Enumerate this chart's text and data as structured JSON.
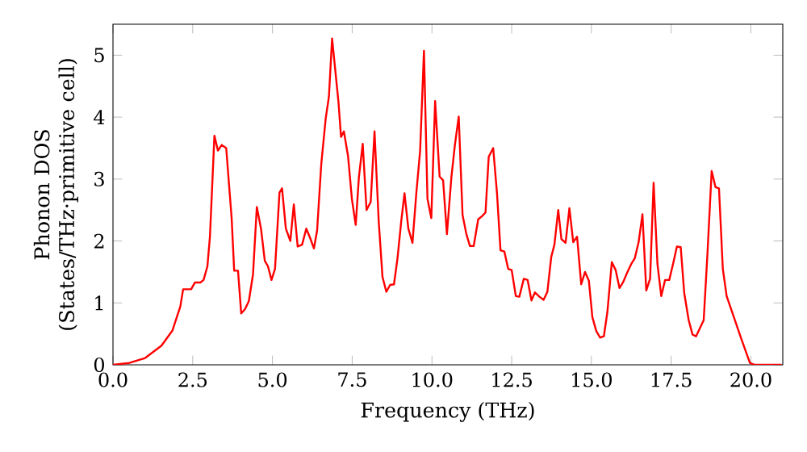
{
  "chart_data": {
    "type": "line",
    "xlabel": "Frequency (THz)",
    "ylabel": "Phonon DOS (States/THz·primitive cell)",
    "xlim": [
      0,
      21
    ],
    "ylim": [
      0,
      5.5
    ],
    "xticks": [
      {
        "value": 0,
        "label": "0.0"
      },
      {
        "value": 2.5,
        "label": "2.5"
      },
      {
        "value": 5,
        "label": "5.0"
      },
      {
        "value": 7.5,
        "label": "7.5"
      },
      {
        "value": 10,
        "label": "10.0"
      },
      {
        "value": 12.5,
        "label": "12.5"
      },
      {
        "value": 15,
        "label": "15.0"
      },
      {
        "value": 17.5,
        "label": "17.5"
      },
      {
        "value": 20,
        "label": "20.0"
      }
    ],
    "yticks": [
      0,
      1,
      2,
      3,
      4,
      5
    ],
    "grid": false,
    "marker": "none",
    "line_style": "solid",
    "series": [
      {
        "color": "#ff0000",
        "x": [
          0,
          0.51,
          1.01,
          1.52,
          1.86,
          2.11,
          2.2,
          2.45,
          2.57,
          2.74,
          2.84,
          2.96,
          3.04,
          3.18,
          3.29,
          3.41,
          3.55,
          3.72,
          3.8,
          3.92,
          4.02,
          4.14,
          4.26,
          4.39,
          4.51,
          4.64,
          4.76,
          4.86,
          4.97,
          5.08,
          5.22,
          5.3,
          5.42,
          5.56,
          5.67,
          5.79,
          5.93,
          6.06,
          6.18,
          6.3,
          6.4,
          6.53,
          6.67,
          6.77,
          6.87,
          7.07,
          7.15,
          7.24,
          7.37,
          7.49,
          7.61,
          7.71,
          7.83,
          7.95,
          8.08,
          8.2,
          8.33,
          8.45,
          8.57,
          8.69,
          8.81,
          8.92,
          9.04,
          9.14,
          9.26,
          9.39,
          9.51,
          9.63,
          9.75,
          9.86,
          9.98,
          10.1,
          10.24,
          10.35,
          10.47,
          10.61,
          10.72,
          10.84,
          10.96,
          11.08,
          11.19,
          11.31,
          11.45,
          11.57,
          11.68,
          11.78,
          11.92,
          12.04,
          12.15,
          12.27,
          12.39,
          12.5,
          12.63,
          12.74,
          12.88,
          13.0,
          13.12,
          13.23,
          13.37,
          13.5,
          13.62,
          13.74,
          13.84,
          13.96,
          14.06,
          14.19,
          14.31,
          14.43,
          14.55,
          14.68,
          14.8,
          14.92,
          15.03,
          15.15,
          15.27,
          15.39,
          15.5,
          15.64,
          15.76,
          15.88,
          15.99,
          16.13,
          16.25,
          16.36,
          16.48,
          16.6,
          16.72,
          16.84,
          16.95,
          17.07,
          17.19,
          17.31,
          17.44,
          17.56,
          17.68,
          17.8,
          17.91,
          18.05,
          18.17,
          18.28,
          18.4,
          18.52,
          18.64,
          18.77,
          18.89,
          19.0,
          19.12,
          19.24,
          19.44,
          19.7,
          19.97,
          20.12,
          20.96
        ],
        "values": [
          0,
          0.03,
          0.11,
          0.31,
          0.55,
          0.94,
          1.22,
          1.22,
          1.33,
          1.33,
          1.37,
          1.59,
          2.07,
          3.7,
          3.46,
          3.55,
          3.5,
          2.37,
          1.52,
          1.52,
          0.83,
          0.9,
          1.03,
          1.46,
          2.55,
          2.2,
          1.68,
          1.59,
          1.37,
          1.55,
          2.78,
          2.85,
          2.2,
          2.0,
          2.59,
          1.91,
          1.94,
          2.2,
          2.05,
          1.88,
          2.17,
          3.24,
          3.98,
          4.33,
          5.27,
          4.24,
          3.68,
          3.77,
          3.37,
          2.68,
          2.26,
          3.03,
          3.57,
          2.5,
          2.63,
          3.77,
          2.33,
          1.42,
          1.18,
          1.29,
          1.3,
          1.72,
          2.33,
          2.77,
          2.2,
          1.97,
          2.77,
          3.46,
          5.07,
          2.68,
          2.37,
          4.26,
          3.04,
          2.98,
          2.11,
          3.03,
          3.55,
          4.01,
          2.42,
          2.11,
          1.92,
          1.92,
          2.35,
          2.4,
          2.46,
          3.36,
          3.5,
          2.77,
          1.85,
          1.83,
          1.55,
          1.53,
          1.11,
          1.1,
          1.39,
          1.37,
          1.04,
          1.17,
          1.1,
          1.05,
          1.18,
          1.74,
          1.94,
          2.5,
          2.03,
          1.97,
          2.53,
          1.98,
          2.07,
          1.3,
          1.5,
          1.36,
          0.77,
          0.55,
          0.44,
          0.46,
          0.85,
          1.66,
          1.53,
          1.24,
          1.33,
          1.5,
          1.63,
          1.72,
          1.98,
          2.43,
          1.2,
          1.39,
          2.94,
          1.63,
          1.11,
          1.37,
          1.37,
          1.63,
          1.91,
          1.9,
          1.16,
          0.72,
          0.49,
          0.46,
          0.59,
          0.72,
          1.81,
          3.13,
          2.87,
          2.85,
          1.55,
          1.11,
          0.81,
          0.42,
          0.03,
          0,
          0
        ]
      }
    ]
  }
}
